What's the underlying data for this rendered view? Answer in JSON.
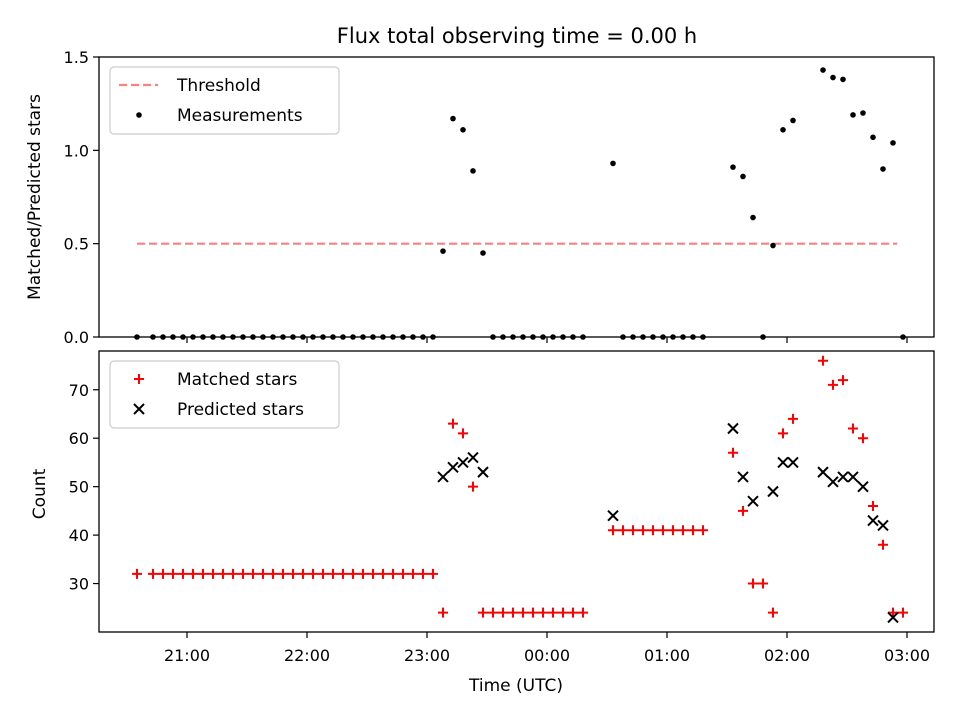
{
  "chart_data": [
    {
      "type": "scatter",
      "title": "Flux total observing time = 0.00 h",
      "xlabel": "",
      "ylabel": "Matched/Predicted stars",
      "ylim": [
        0,
        1.5
      ],
      "yticks": [
        "0.0",
        "0.5",
        "1.0",
        "1.5"
      ],
      "legend_position": "upper-left",
      "series": [
        {
          "name": "Threshold",
          "kind": "dashed-line",
          "color": "#ff7f7f",
          "points": [
            [
              "20:35",
              0.5
            ],
            [
              "02:55",
              0.5
            ]
          ]
        },
        {
          "name": "Measurements",
          "kind": "dots",
          "color": "#000000",
          "points": [
            [
              "20:35",
              0
            ],
            [
              "20:43",
              0
            ],
            [
              "20:48",
              0
            ],
            [
              "20:53",
              0
            ],
            [
              "20:58",
              0
            ],
            [
              "21:03",
              0
            ],
            [
              "21:08",
              0
            ],
            [
              "21:13",
              0
            ],
            [
              "21:18",
              0
            ],
            [
              "21:23",
              0
            ],
            [
              "21:28",
              0
            ],
            [
              "21:33",
              0
            ],
            [
              "21:38",
              0
            ],
            [
              "21:43",
              0
            ],
            [
              "21:48",
              0
            ],
            [
              "21:53",
              0
            ],
            [
              "21:58",
              0
            ],
            [
              "22:03",
              0
            ],
            [
              "22:08",
              0
            ],
            [
              "22:13",
              0
            ],
            [
              "22:18",
              0
            ],
            [
              "22:23",
              0
            ],
            [
              "22:28",
              0
            ],
            [
              "22:33",
              0
            ],
            [
              "22:38",
              0
            ],
            [
              "22:43",
              0
            ],
            [
              "22:48",
              0
            ],
            [
              "22:53",
              0
            ],
            [
              "22:58",
              0
            ],
            [
              "23:03",
              0
            ],
            [
              "23:08",
              0.46
            ],
            [
              "23:13",
              1.17
            ],
            [
              "23:18",
              1.11
            ],
            [
              "23:23",
              0.89
            ],
            [
              "23:28",
              0.45
            ],
            [
              "23:33",
              0
            ],
            [
              "23:38",
              0
            ],
            [
              "23:43",
              0
            ],
            [
              "23:48",
              0
            ],
            [
              "23:53",
              0
            ],
            [
              "23:58",
              0
            ],
            [
              "00:03",
              0
            ],
            [
              "00:08",
              0
            ],
            [
              "00:13",
              0
            ],
            [
              "00:18",
              0
            ],
            [
              "00:33",
              0.93
            ],
            [
              "00:38",
              0
            ],
            [
              "00:43",
              0
            ],
            [
              "00:48",
              0
            ],
            [
              "00:53",
              0
            ],
            [
              "00:58",
              0
            ],
            [
              "01:03",
              0
            ],
            [
              "01:08",
              0
            ],
            [
              "01:13",
              0
            ],
            [
              "01:18",
              0
            ],
            [
              "01:33",
              0.91
            ],
            [
              "01:38",
              0.86
            ],
            [
              "01:43",
              0.64
            ],
            [
              "01:48",
              0
            ],
            [
              "01:53",
              0.49
            ],
            [
              "01:58",
              1.11
            ],
            [
              "02:03",
              1.16
            ],
            [
              "02:18",
              1.43
            ],
            [
              "02:23",
              1.39
            ],
            [
              "02:28",
              1.38
            ],
            [
              "02:33",
              1.19
            ],
            [
              "02:38",
              1.2
            ],
            [
              "02:43",
              1.07
            ],
            [
              "02:48",
              0.9
            ],
            [
              "02:53",
              1.04
            ],
            [
              "02:58",
              0
            ]
          ]
        }
      ]
    },
    {
      "type": "scatter",
      "title": "",
      "xlabel": "Time (UTC)",
      "ylabel": "Count",
      "ylim": [
        20,
        78
      ],
      "yticks": [
        "30",
        "40",
        "50",
        "60",
        "70"
      ],
      "xticks": [
        "21:00",
        "22:00",
        "23:00",
        "00:00",
        "01:00",
        "02:00",
        "03:00"
      ],
      "legend_position": "upper-left",
      "series": [
        {
          "name": "Matched stars",
          "kind": "plus",
          "color": "#ff0000",
          "points": [
            [
              "20:35",
              32
            ],
            [
              "20:43",
              32
            ],
            [
              "20:48",
              32
            ],
            [
              "20:53",
              32
            ],
            [
              "20:58",
              32
            ],
            [
              "21:03",
              32
            ],
            [
              "21:08",
              32
            ],
            [
              "21:13",
              32
            ],
            [
              "21:18",
              32
            ],
            [
              "21:23",
              32
            ],
            [
              "21:28",
              32
            ],
            [
              "21:33",
              32
            ],
            [
              "21:38",
              32
            ],
            [
              "21:43",
              32
            ],
            [
              "21:48",
              32
            ],
            [
              "21:53",
              32
            ],
            [
              "21:58",
              32
            ],
            [
              "22:03",
              32
            ],
            [
              "22:08",
              32
            ],
            [
              "22:13",
              32
            ],
            [
              "22:18",
              32
            ],
            [
              "22:23",
              32
            ],
            [
              "22:28",
              32
            ],
            [
              "22:33",
              32
            ],
            [
              "22:38",
              32
            ],
            [
              "22:43",
              32
            ],
            [
              "22:48",
              32
            ],
            [
              "22:53",
              32
            ],
            [
              "22:58",
              32
            ],
            [
              "23:03",
              32
            ],
            [
              "23:08",
              24
            ],
            [
              "23:13",
              63
            ],
            [
              "23:18",
              61
            ],
            [
              "23:23",
              50
            ],
            [
              "23:28",
              24
            ],
            [
              "23:33",
              24
            ],
            [
              "23:38",
              24
            ],
            [
              "23:43",
              24
            ],
            [
              "23:48",
              24
            ],
            [
              "23:53",
              24
            ],
            [
              "23:58",
              24
            ],
            [
              "00:03",
              24
            ],
            [
              "00:08",
              24
            ],
            [
              "00:13",
              24
            ],
            [
              "00:18",
              24
            ],
            [
              "00:33",
              41
            ],
            [
              "00:38",
              41
            ],
            [
              "00:43",
              41
            ],
            [
              "00:48",
              41
            ],
            [
              "00:53",
              41
            ],
            [
              "00:58",
              41
            ],
            [
              "01:03",
              41
            ],
            [
              "01:08",
              41
            ],
            [
              "01:13",
              41
            ],
            [
              "01:18",
              41
            ],
            [
              "01:33",
              57
            ],
            [
              "01:38",
              45
            ],
            [
              "01:43",
              30
            ],
            [
              "01:48",
              30
            ],
            [
              "01:53",
              24
            ],
            [
              "01:58",
              61
            ],
            [
              "02:03",
              64
            ],
            [
              "02:18",
              76
            ],
            [
              "02:23",
              71
            ],
            [
              "02:28",
              72
            ],
            [
              "02:33",
              62
            ],
            [
              "02:38",
              60
            ],
            [
              "02:43",
              46
            ],
            [
              "02:48",
              38
            ],
            [
              "02:53",
              24
            ],
            [
              "02:58",
              24
            ]
          ]
        },
        {
          "name": "Predicted stars",
          "kind": "x",
          "color": "#000000",
          "points": [
            [
              "23:08",
              52
            ],
            [
              "23:13",
              54
            ],
            [
              "23:18",
              55
            ],
            [
              "23:23",
              56
            ],
            [
              "23:28",
              53
            ],
            [
              "00:33",
              44
            ],
            [
              "01:33",
              62
            ],
            [
              "01:38",
              52
            ],
            [
              "01:43",
              47
            ],
            [
              "01:53",
              49
            ],
            [
              "01:58",
              55
            ],
            [
              "02:03",
              55
            ],
            [
              "02:18",
              53
            ],
            [
              "02:23",
              51
            ],
            [
              "02:28",
              52
            ],
            [
              "02:33",
              52
            ],
            [
              "02:38",
              50
            ],
            [
              "02:43",
              43
            ],
            [
              "02:48",
              42
            ],
            [
              "02:53",
              23
            ]
          ]
        }
      ]
    }
  ]
}
